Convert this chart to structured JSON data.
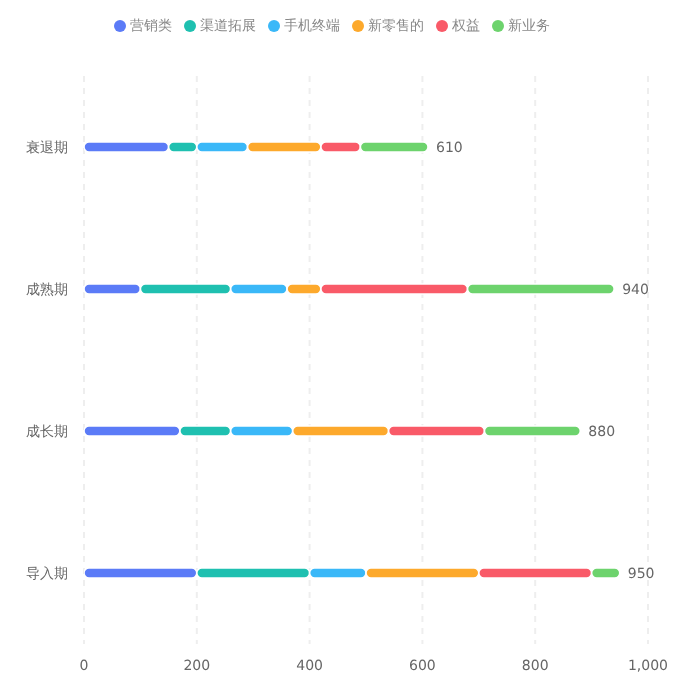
{
  "chart_data": {
    "type": "bar",
    "orientation": "horizontal",
    "stacked": true,
    "categories": [
      "衰退期",
      "成熟期",
      "成长期",
      "导入期"
    ],
    "series": [
      {
        "name": "营销类",
        "color": "#5b7bf7",
        "values": [
          150,
          100,
          170,
          200
        ]
      },
      {
        "name": "渠道拓展",
        "color": "#1fc0b0",
        "values": [
          50,
          160,
          90,
          200
        ]
      },
      {
        "name": "手机终端",
        "color": "#3ab8f8",
        "values": [
          90,
          100,
          110,
          100
        ]
      },
      {
        "name": "新零售的",
        "color": "#fda92c",
        "values": [
          130,
          60,
          170,
          200
        ]
      },
      {
        "name": "权益",
        "color": "#f95a68",
        "values": [
          70,
          260,
          170,
          200
        ]
      },
      {
        "name": "新业务",
        "color": "#6dd36d",
        "values": [
          120,
          260,
          170,
          50
        ]
      }
    ],
    "totals": [
      "610",
      "940",
      "880",
      "950"
    ],
    "xlim": [
      0,
      1000
    ],
    "xticks": [
      0,
      200,
      400,
      600,
      800,
      {
        "value": 1000,
        "label": "1,000"
      }
    ],
    "grid": "x",
    "legend": "top"
  }
}
